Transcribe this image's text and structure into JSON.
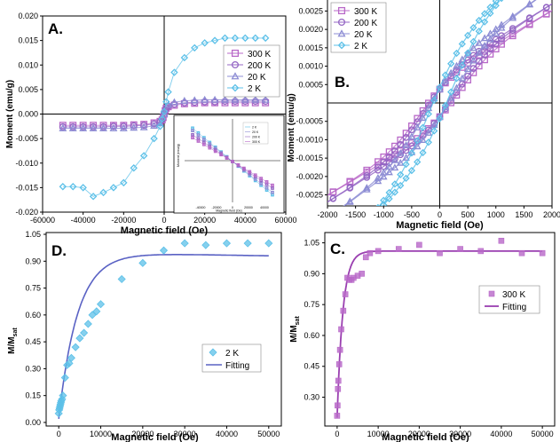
{
  "colors": {
    "k300": "#b868c8",
    "k200": "#9466c4",
    "k20": "#8c8cd4",
    "k2": "#5cc0e8",
    "fitBlue": "#5a62c4",
    "fitPurple": "#9a3fb0"
  },
  "chart_data": [
    {
      "id": "A",
      "type": "scatter",
      "panel_label": "A.",
      "xlabel": "Magnetic field (Oe)",
      "ylabel": "Moment (emu/g)",
      "xlim": [
        -60000,
        60000
      ],
      "ylim": [
        -0.02,
        0.02
      ],
      "xticks": [
        -60000,
        -40000,
        -20000,
        0,
        20000,
        40000,
        60000
      ],
      "yticks": [
        -0.02,
        -0.015,
        -0.01,
        -0.005,
        0,
        0.005,
        0.01,
        0.015,
        0.02
      ],
      "xtick_labels": [
        "-60000",
        "-40000",
        "-20000",
        "0",
        "20000",
        "40000",
        "60000"
      ],
      "ytick_labels": [
        "-0.020",
        "-0.015",
        "-0.010",
        "-0.005",
        "0.000",
        "0.005",
        "0.010",
        "0.015",
        "0.020"
      ],
      "axes_through_origin": true,
      "legend": {
        "position": "right",
        "entries": [
          "300 K",
          "200 K",
          "20 K",
          "2 K"
        ]
      },
      "series": [
        {
          "name": "300 K",
          "marker": "square",
          "color": "k300",
          "x": [
            -50000,
            -45000,
            -40000,
            -35000,
            -30000,
            -25000,
            -20000,
            -15000,
            -10000,
            -5000,
            -2000,
            -1000,
            -500,
            0,
            500,
            1000,
            2000,
            5000,
            10000,
            15000,
            20000,
            25000,
            30000,
            35000,
            40000,
            45000,
            50000
          ],
          "y": [
            -0.0023,
            -0.0023,
            -0.0023,
            -0.0023,
            -0.0023,
            -0.0023,
            -0.0023,
            -0.0022,
            -0.0021,
            -0.0018,
            -0.0015,
            -0.0012,
            -0.0007,
            0,
            0.0007,
            0.0012,
            0.0015,
            0.0018,
            0.0021,
            0.0022,
            0.0023,
            0.0023,
            0.0023,
            0.0023,
            0.0023,
            0.0023,
            0.0023
          ]
        },
        {
          "name": "200 K",
          "marker": "circle",
          "color": "k200",
          "x": [
            -50000,
            -45000,
            -40000,
            -35000,
            -30000,
            -25000,
            -20000,
            -15000,
            -10000,
            -5000,
            -2000,
            -1000,
            0,
            1000,
            2000,
            5000,
            10000,
            15000,
            20000,
            25000,
            30000,
            35000,
            40000,
            45000,
            50000
          ],
          "y": [
            -0.0026,
            -0.0026,
            -0.0026,
            -0.0026,
            -0.0026,
            -0.0025,
            -0.0025,
            -0.0024,
            -0.0023,
            -0.002,
            -0.0016,
            -0.0012,
            0,
            0.0012,
            0.0016,
            0.002,
            0.0023,
            0.0024,
            0.0025,
            0.0025,
            0.0026,
            0.0026,
            0.0026,
            0.0026,
            0.0026
          ]
        },
        {
          "name": "20 K",
          "marker": "triangle",
          "color": "k20",
          "x": [
            -50000,
            -45000,
            -40000,
            -35000,
            -30000,
            -25000,
            -20000,
            -15000,
            -10000,
            -5000,
            -2000,
            0,
            2000,
            5000,
            10000,
            15000,
            20000,
            25000,
            30000,
            35000,
            40000,
            45000,
            50000
          ],
          "y": [
            -0.0029,
            -0.0029,
            -0.0029,
            -0.0029,
            -0.0029,
            -0.0029,
            -0.0029,
            -0.0028,
            -0.0027,
            -0.0024,
            -0.0019,
            0,
            0.0019,
            0.0024,
            0.0027,
            0.0028,
            0.0029,
            0.0029,
            0.0029,
            0.0029,
            0.0029,
            0.0029,
            0.0029
          ]
        },
        {
          "name": "2 K",
          "marker": "diamond",
          "color": "k2",
          "x": [
            -50000,
            -45000,
            -40000,
            -35000,
            -30000,
            -25000,
            -20000,
            -15000,
            -10000,
            -5000,
            -2000,
            -1000,
            0,
            1000,
            2000,
            5000,
            10000,
            15000,
            20000,
            25000,
            30000,
            35000,
            40000,
            45000,
            50000
          ],
          "y": [
            -0.0148,
            -0.0148,
            -0.015,
            -0.0168,
            -0.016,
            -0.015,
            -0.014,
            -0.011,
            -0.0085,
            -0.005,
            -0.0025,
            -0.001,
            0.0005,
            0.0025,
            0.0045,
            0.0085,
            0.0115,
            0.0135,
            0.0145,
            0.015,
            0.0155,
            0.0155,
            0.0155,
            0.0155,
            0.0155
          ]
        }
      ],
      "inset": {
        "xlabel": "Magnetic field (Oe)",
        "ylabel": "Moment (emu/g)",
        "legend_entries": [
          "2 K",
          "20 K",
          "200 K",
          "300 K"
        ],
        "xlim": [
          -60000,
          60000
        ],
        "ylim": [
          -1.0,
          1.0
        ],
        "xticks": [
          -40000,
          -20000,
          0,
          20000,
          40000
        ],
        "xtick_labels": [
          "-40000",
          "-20000",
          "0",
          "20000",
          "40000"
        ],
        "series": [
          {
            "name": "2 K",
            "color": "k2",
            "x": [
              -50000,
              50000
            ],
            "y": [
              0.78,
              -0.82
            ]
          },
          {
            "name": "20 K",
            "color": "k20",
            "x": [
              -50000,
              50000
            ],
            "y": [
              0.72,
              -0.76
            ]
          },
          {
            "name": "200 K",
            "color": "k200",
            "x": [
              -50000,
              50000
            ],
            "y": [
              0.62,
              -0.66
            ]
          },
          {
            "name": "300 K",
            "color": "k300",
            "x": [
              -50000,
              50000
            ],
            "y": [
              0.55,
              -0.59
            ]
          }
        ]
      }
    },
    {
      "id": "B",
      "type": "line",
      "panel_label": "B.",
      "xlabel": "Magnetic field (Oe)",
      "ylabel": "Moment (emu/g)",
      "xlim": [
        -2000,
        2000
      ],
      "ylim": [
        -0.0028,
        0.0028
      ],
      "xticks": [
        -2000,
        -1500,
        -1000,
        -500,
        0,
        500,
        1000,
        1500,
        2000
      ],
      "xtick_labels": [
        "-2000",
        "-1500",
        "-1000",
        "-500",
        "0",
        "500",
        "1000",
        "1500",
        "2000"
      ],
      "yticks": [
        -0.0025,
        -0.002,
        -0.0015,
        -0.001,
        -0.0005,
        0.0005,
        0.001,
        0.0015,
        0.002,
        0.0025
      ],
      "ytick_labels": [
        "-0.0025",
        "-0.0020",
        "-0.0015",
        "-0.0010",
        "-0.0005",
        "0.0005",
        "0.0010",
        "0.0015",
        "0.0020",
        "0.0025"
      ],
      "axes_through_origin": true,
      "legend": {
        "position": "top-left",
        "entries": [
          "300 K",
          "200 K",
          "20 K",
          "2 K"
        ]
      },
      "series": [
        {
          "name": "300 K",
          "marker": "square",
          "color": "k300",
          "slope": 9e-07,
          "coercivity": 350,
          "sat": 0.0013
        },
        {
          "name": "200 K",
          "marker": "circle",
          "color": "k200",
          "slope": 9.5e-07,
          "coercivity": 300,
          "sat": 0.00145
        },
        {
          "name": "20 K",
          "marker": "triangle",
          "color": "k20",
          "slope": 1.1e-06,
          "coercivity": 250,
          "sat": 0.0017
        },
        {
          "name": "2 K",
          "marker": "diamond",
          "color": "k2",
          "slope": 1.5e-06,
          "coercivity": 200,
          "sat": 0.0024
        }
      ]
    },
    {
      "id": "D",
      "type": "scatter",
      "panel_label": "D.",
      "xlabel": "Magnetic field (Oe)",
      "ylabel": "M/M",
      "ylabel_sub": "sat",
      "xlim": [
        -3000,
        53000
      ],
      "ylim": [
        -0.02,
        1.06
      ],
      "xticks": [
        0,
        10000,
        20000,
        30000,
        40000,
        50000
      ],
      "xtick_labels": [
        "0",
        "10000",
        "20000",
        "30000",
        "40000",
        "50000"
      ],
      "yticks": [
        0.0,
        0.15,
        0.3,
        0.45,
        0.6,
        0.75,
        0.9,
        1.05
      ],
      "ytick_labels": [
        "0.00",
        "0.15",
        "0.30",
        "0.45",
        "0.60",
        "0.75",
        "0.90",
        "1.05"
      ],
      "legend": {
        "position": "right",
        "entries": [
          "2 K",
          "Fitting"
        ]
      },
      "series": [
        {
          "name": "2 K",
          "marker": "diamond",
          "color": "k2",
          "x": [
            0,
            100,
            200,
            300,
            400,
            500,
            600,
            800,
            1000,
            1500,
            2000,
            2500,
            3000,
            4000,
            5000,
            6000,
            7000,
            8000,
            9000,
            10000,
            15000,
            20000,
            25000,
            30000,
            35000,
            40000,
            45000,
            50000
          ],
          "y": [
            0.05,
            0.07,
            0.08,
            0.09,
            0.1,
            0.11,
            0.12,
            0.13,
            0.15,
            0.25,
            0.32,
            0.33,
            0.36,
            0.42,
            0.47,
            0.5,
            0.55,
            0.6,
            0.62,
            0.66,
            0.8,
            0.89,
            0.96,
            1.0,
            0.99,
            1.0,
            1.0,
            1.0
          ]
        },
        {
          "name": "Fitting",
          "marker": "line",
          "color": "fitBlue",
          "fit_k": 4500,
          "fit_max": 1.0
        }
      ]
    },
    {
      "id": "C",
      "type": "scatter",
      "panel_label": "C.",
      "xlabel": "Magnetic field (Oe)",
      "ylabel": "M/M",
      "ylabel_sub": "sat",
      "xlim": [
        -3000,
        53000
      ],
      "ylim": [
        0.16,
        1.1
      ],
      "xticks": [
        0,
        10000,
        20000,
        30000,
        40000,
        50000
      ],
      "xtick_labels": [
        "0",
        "10000",
        "20000",
        "30000",
        "40000",
        "50000"
      ],
      "yticks": [
        0.3,
        0.45,
        0.6,
        0.75,
        0.9,
        1.05
      ],
      "ytick_labels": [
        "0.30",
        "0.45",
        "0.60",
        "0.75",
        "0.90",
        "1.05"
      ],
      "legend": {
        "position": "right",
        "entries": [
          "300 K",
          "Fitting"
        ]
      },
      "series": [
        {
          "name": "300 K",
          "marker": "square",
          "color": "k300",
          "x": [
            0,
            100,
            200,
            300,
            500,
            700,
            1000,
            1500,
            2000,
            2500,
            3000,
            3500,
            4000,
            5000,
            6000,
            7000,
            8000,
            10000,
            15000,
            20000,
            25000,
            30000,
            35000,
            40000,
            45000,
            50000
          ],
          "y": [
            0.21,
            0.26,
            0.34,
            0.38,
            0.46,
            0.53,
            0.63,
            0.72,
            0.8,
            0.88,
            0.87,
            0.87,
            0.88,
            0.89,
            0.9,
            0.98,
            1.0,
            1.01,
            1.02,
            1.04,
            1.0,
            1.02,
            1.01,
            1.06,
            1.0,
            1.0
          ]
        },
        {
          "name": "Fitting",
          "marker": "line",
          "color": "fitPurple",
          "fit_k": 1400,
          "fit_max": 1.01,
          "fit_min": 0.2
        }
      ]
    }
  ]
}
